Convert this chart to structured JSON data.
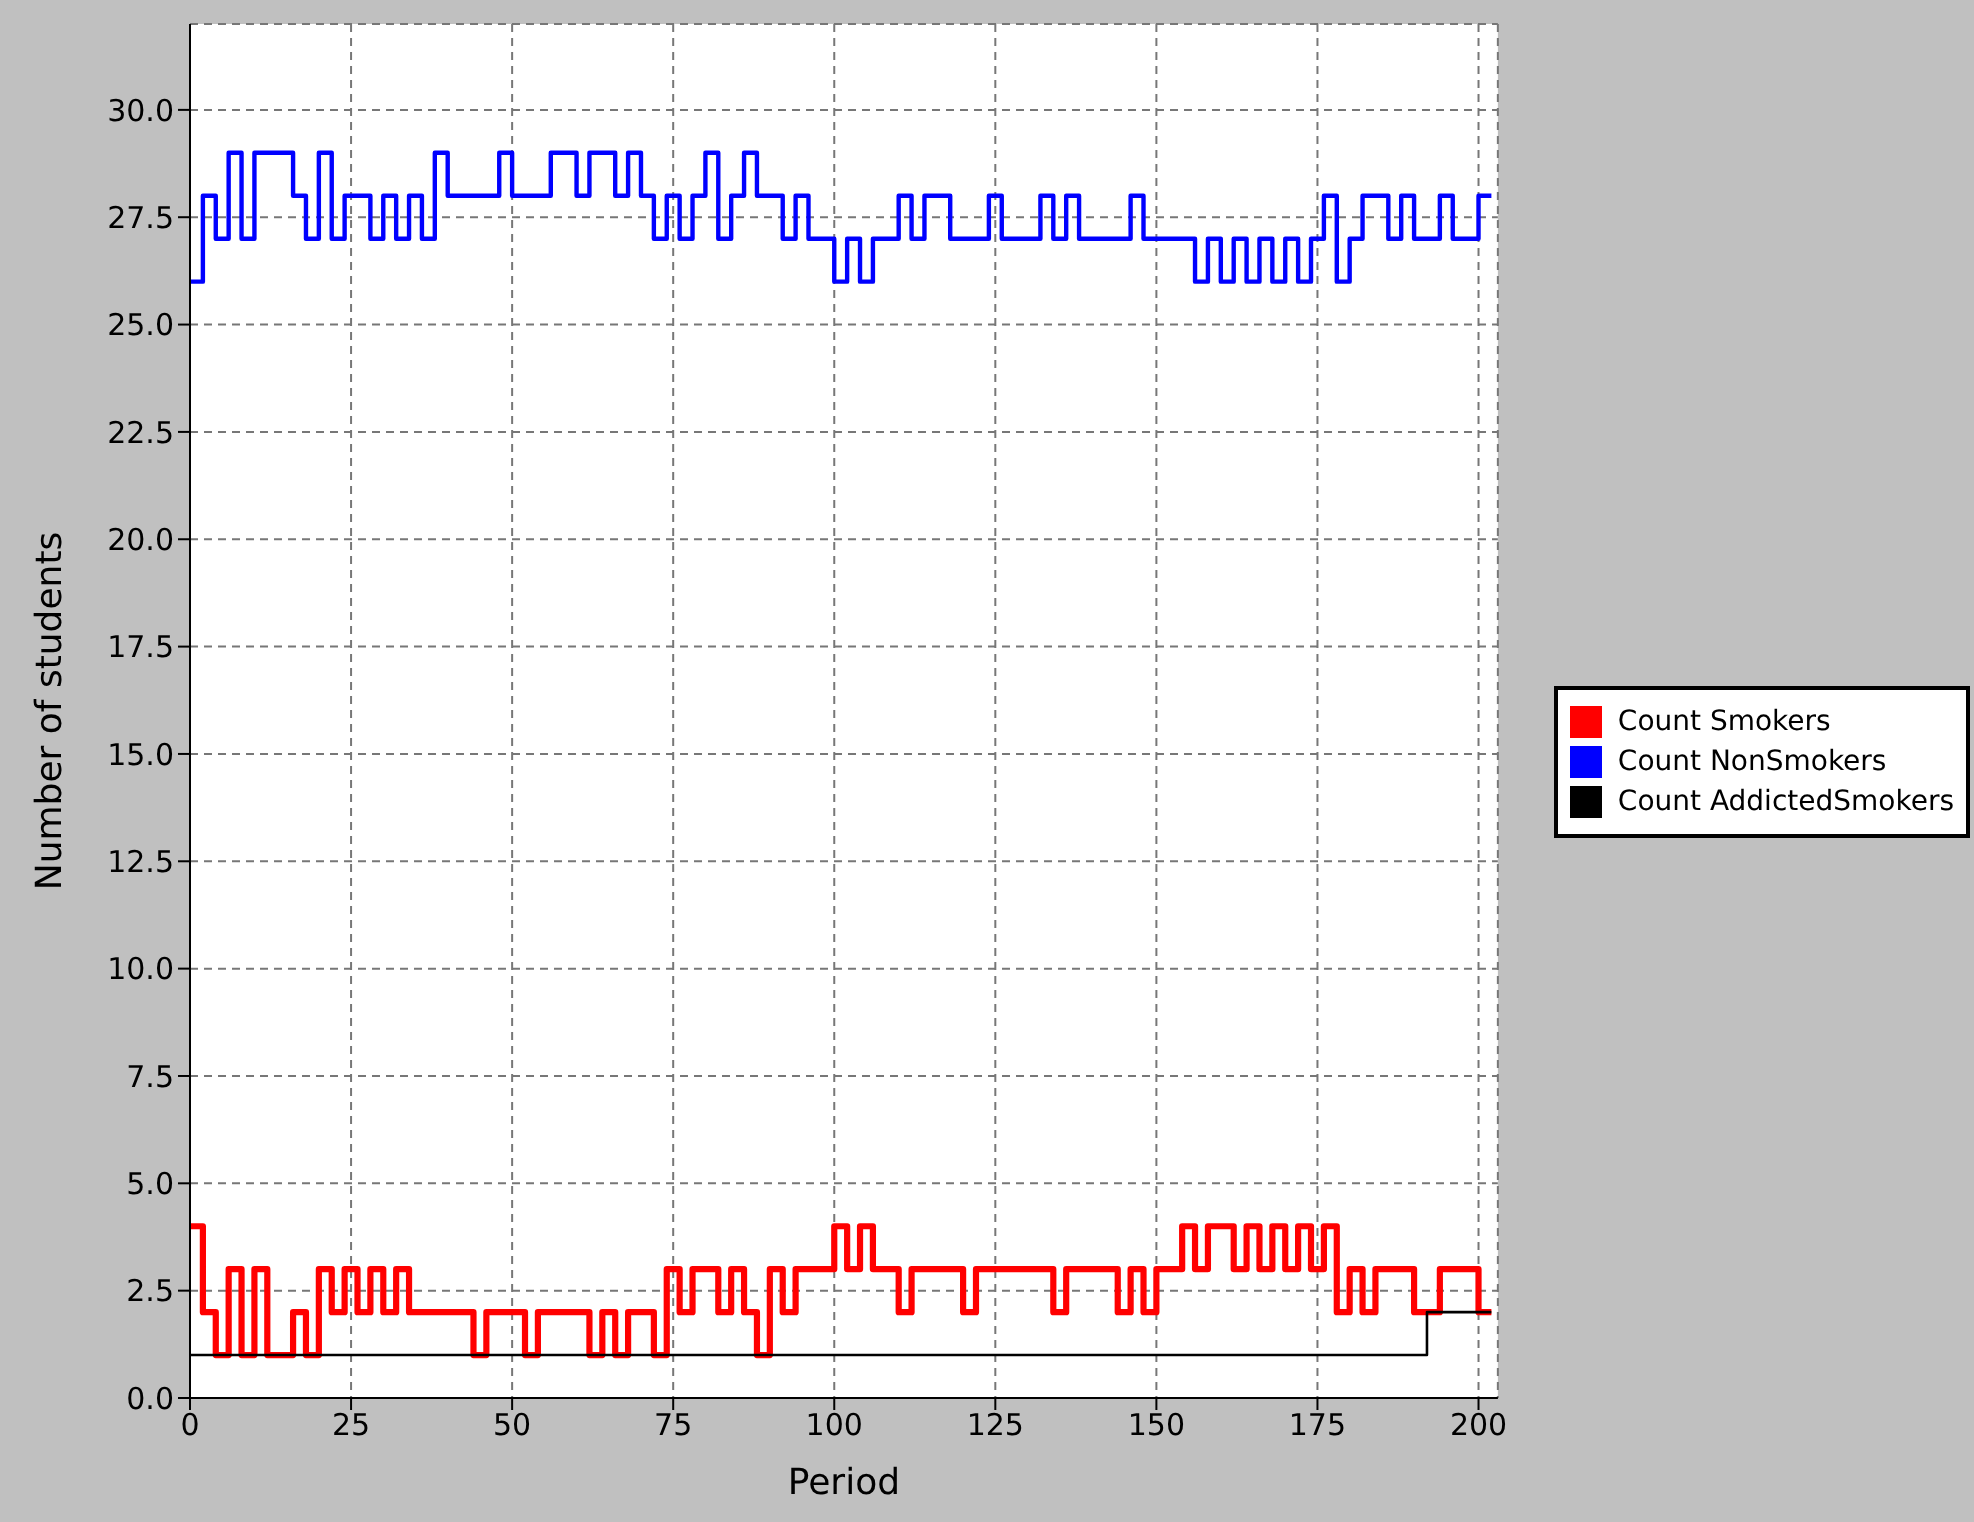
{
  "chart_data": {
    "type": "step",
    "xlabel": "Period",
    "ylabel": "Number of students",
    "x": [
      0,
      2,
      4,
      6,
      8,
      10,
      12,
      14,
      16,
      18,
      20,
      22,
      24,
      26,
      28,
      30,
      32,
      34,
      36,
      38,
      40,
      42,
      44,
      46,
      48,
      50,
      52,
      54,
      56,
      58,
      60,
      62,
      64,
      66,
      68,
      70,
      72,
      74,
      76,
      78,
      80,
      82,
      84,
      86,
      88,
      90,
      92,
      94,
      96,
      98,
      100,
      102,
      104,
      106,
      108,
      110,
      112,
      114,
      116,
      118,
      120,
      122,
      124,
      126,
      128,
      130,
      132,
      134,
      136,
      138,
      140,
      142,
      144,
      146,
      148,
      150,
      152,
      154,
      156,
      158,
      160,
      162,
      164,
      166,
      168,
      170,
      172,
      174,
      176,
      178,
      180,
      182,
      184,
      186,
      188,
      190,
      192,
      194,
      196,
      198,
      200,
      202
    ],
    "series": [
      {
        "name": "Count Smokers",
        "color": "#ff0000",
        "values": [
          4,
          2,
          1,
          3,
          1,
          3,
          1,
          1,
          2,
          1,
          3,
          2,
          3,
          2,
          3,
          2,
          3,
          2,
          2,
          2,
          2,
          2,
          1,
          2,
          2,
          2,
          1,
          2,
          2,
          2,
          2,
          1,
          2,
          1,
          2,
          2,
          1,
          3,
          2,
          3,
          3,
          2,
          3,
          2,
          1,
          3,
          2,
          3,
          3,
          3,
          4,
          3,
          4,
          3,
          3,
          2,
          3,
          3,
          3,
          3,
          2,
          3,
          3,
          3,
          3,
          3,
          3,
          2,
          3,
          3,
          3,
          3,
          2,
          3,
          2,
          3,
          3,
          4,
          3,
          4,
          4,
          3,
          4,
          3,
          4,
          3,
          4,
          3,
          4,
          2,
          3,
          2,
          3,
          3,
          3,
          2,
          2,
          3,
          3,
          3,
          2,
          2
        ]
      },
      {
        "name": "Count NonSmokers",
        "color": "#0000ff",
        "values": [
          26,
          28,
          27,
          29,
          27,
          29,
          29,
          29,
          28,
          27,
          29,
          27,
          28,
          28,
          27,
          28,
          27,
          28,
          27,
          29,
          28,
          28,
          28,
          28,
          29,
          28,
          28,
          28,
          29,
          29,
          28,
          29,
          29,
          28,
          29,
          28,
          27,
          28,
          27,
          28,
          29,
          27,
          28,
          29,
          28,
          28,
          27,
          28,
          27,
          27,
          26,
          27,
          26,
          27,
          27,
          28,
          27,
          28,
          28,
          27,
          27,
          27,
          28,
          27,
          27,
          27,
          28,
          27,
          28,
          27,
          27,
          27,
          27,
          28,
          27,
          27,
          27,
          27,
          26,
          27,
          26,
          27,
          26,
          27,
          26,
          27,
          26,
          27,
          28,
          26,
          27,
          28,
          28,
          27,
          28,
          27,
          27,
          28,
          27,
          27,
          28,
          28
        ]
      },
      {
        "name": "Count AddictedSmokers",
        "color": "#000000",
        "values": [
          1,
          1,
          1,
          1,
          1,
          1,
          1,
          1,
          1,
          1,
          1,
          1,
          1,
          1,
          1,
          1,
          1,
          1,
          1,
          1,
          1,
          1,
          1,
          1,
          1,
          1,
          1,
          1,
          1,
          1,
          1,
          1,
          1,
          1,
          1,
          1,
          1,
          1,
          1,
          1,
          1,
          1,
          1,
          1,
          1,
          1,
          1,
          1,
          1,
          1,
          1,
          1,
          1,
          1,
          1,
          1,
          1,
          1,
          1,
          1,
          1,
          1,
          1,
          1,
          1,
          1,
          1,
          1,
          1,
          1,
          1,
          1,
          1,
          1,
          1,
          1,
          1,
          1,
          1,
          1,
          1,
          1,
          1,
          1,
          1,
          1,
          1,
          1,
          1,
          1,
          1,
          1,
          1,
          1,
          1,
          1,
          2,
          2,
          2,
          2,
          2,
          2
        ]
      }
    ],
    "xlim": [
      0,
      203
    ],
    "xticks": [
      0,
      25,
      50,
      75,
      100,
      125,
      150,
      175,
      200
    ],
    "ylim": [
      0,
      32
    ],
    "yticks": [
      {
        "value": 0,
        "label": "0.0"
      },
      {
        "value": 2.5,
        "label": "2.5"
      },
      {
        "value": 5,
        "label": "5.0"
      },
      {
        "value": 7.5,
        "label": "7.5"
      },
      {
        "value": 10,
        "label": "10.0"
      },
      {
        "value": 12.5,
        "label": "12.5"
      },
      {
        "value": 15,
        "label": "15.0"
      },
      {
        "value": 17.5,
        "label": "17.5"
      },
      {
        "value": 20,
        "label": "20.0"
      },
      {
        "value": 22.5,
        "label": "22.5"
      },
      {
        "value": 25,
        "label": "25.0"
      },
      {
        "value": 27.5,
        "label": "27.5"
      },
      {
        "value": 30,
        "label": "30.0"
      }
    ],
    "grid": true,
    "legend": "right",
    "marker": "none",
    "line_style": "solid"
  }
}
